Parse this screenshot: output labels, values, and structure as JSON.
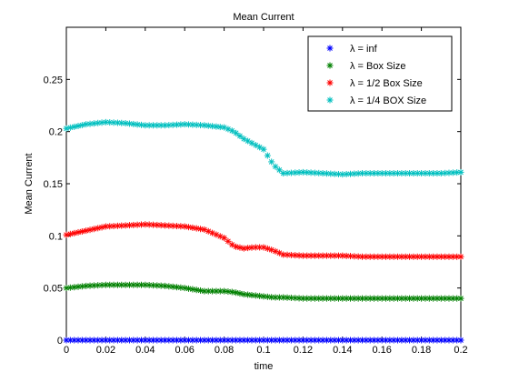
{
  "chart_data": {
    "type": "scatter",
    "title": "Mean Current",
    "xlabel": "time",
    "ylabel": "Mean Current",
    "xlim": [
      0,
      0.2
    ],
    "ylim": [
      0,
      0.3
    ],
    "xticks": [
      "0",
      "0.02",
      "0.04",
      "0.06",
      "0.08",
      "0.1",
      "0.12",
      "0.14",
      "0.16",
      "0.18",
      "0.2"
    ],
    "yticks": [
      "0",
      "0.05",
      "0.1",
      "0.15",
      "0.2",
      "0.25"
    ],
    "grid": false,
    "legend_position": "top-right",
    "marker": "*",
    "x": [
      0,
      0.01,
      0.02,
      0.03,
      0.04,
      0.05,
      0.06,
      0.07,
      0.08,
      0.085,
      0.09,
      0.095,
      0.1,
      0.105,
      0.11,
      0.12,
      0.13,
      0.14,
      0.15,
      0.16,
      0.17,
      0.18,
      0.19,
      0.2
    ],
    "series": [
      {
        "name": "λ = inf",
        "color": "#0000ff",
        "values": [
          0,
          0,
          0,
          0,
          0,
          0,
          0,
          0,
          0,
          0,
          0,
          0,
          0,
          0,
          0,
          0,
          0,
          0,
          0,
          0,
          0,
          0,
          0,
          0
        ]
      },
      {
        "name": "λ = Box Size",
        "color": "#008000",
        "values": [
          0.05,
          0.052,
          0.053,
          0.053,
          0.053,
          0.052,
          0.05,
          0.047,
          0.047,
          0.046,
          0.044,
          0.043,
          0.042,
          0.041,
          0.041,
          0.04,
          0.04,
          0.04,
          0.04,
          0.04,
          0.04,
          0.04,
          0.04,
          0.04
        ]
      },
      {
        "name": "λ = 1/2 Box Size",
        "color": "#ff0000",
        "values": [
          0.101,
          0.105,
          0.109,
          0.11,
          0.111,
          0.11,
          0.109,
          0.106,
          0.098,
          0.09,
          0.088,
          0.089,
          0.089,
          0.086,
          0.082,
          0.081,
          0.081,
          0.081,
          0.08,
          0.08,
          0.08,
          0.08,
          0.08,
          0.08
        ]
      },
      {
        "name": "λ = 1/4 BOX Size",
        "color": "#00bfbf",
        "values": [
          0.203,
          0.207,
          0.209,
          0.208,
          0.206,
          0.206,
          0.207,
          0.206,
          0.204,
          0.2,
          0.193,
          0.188,
          0.183,
          0.168,
          0.16,
          0.161,
          0.16,
          0.159,
          0.16,
          0.16,
          0.16,
          0.16,
          0.16,
          0.161
        ]
      }
    ]
  }
}
